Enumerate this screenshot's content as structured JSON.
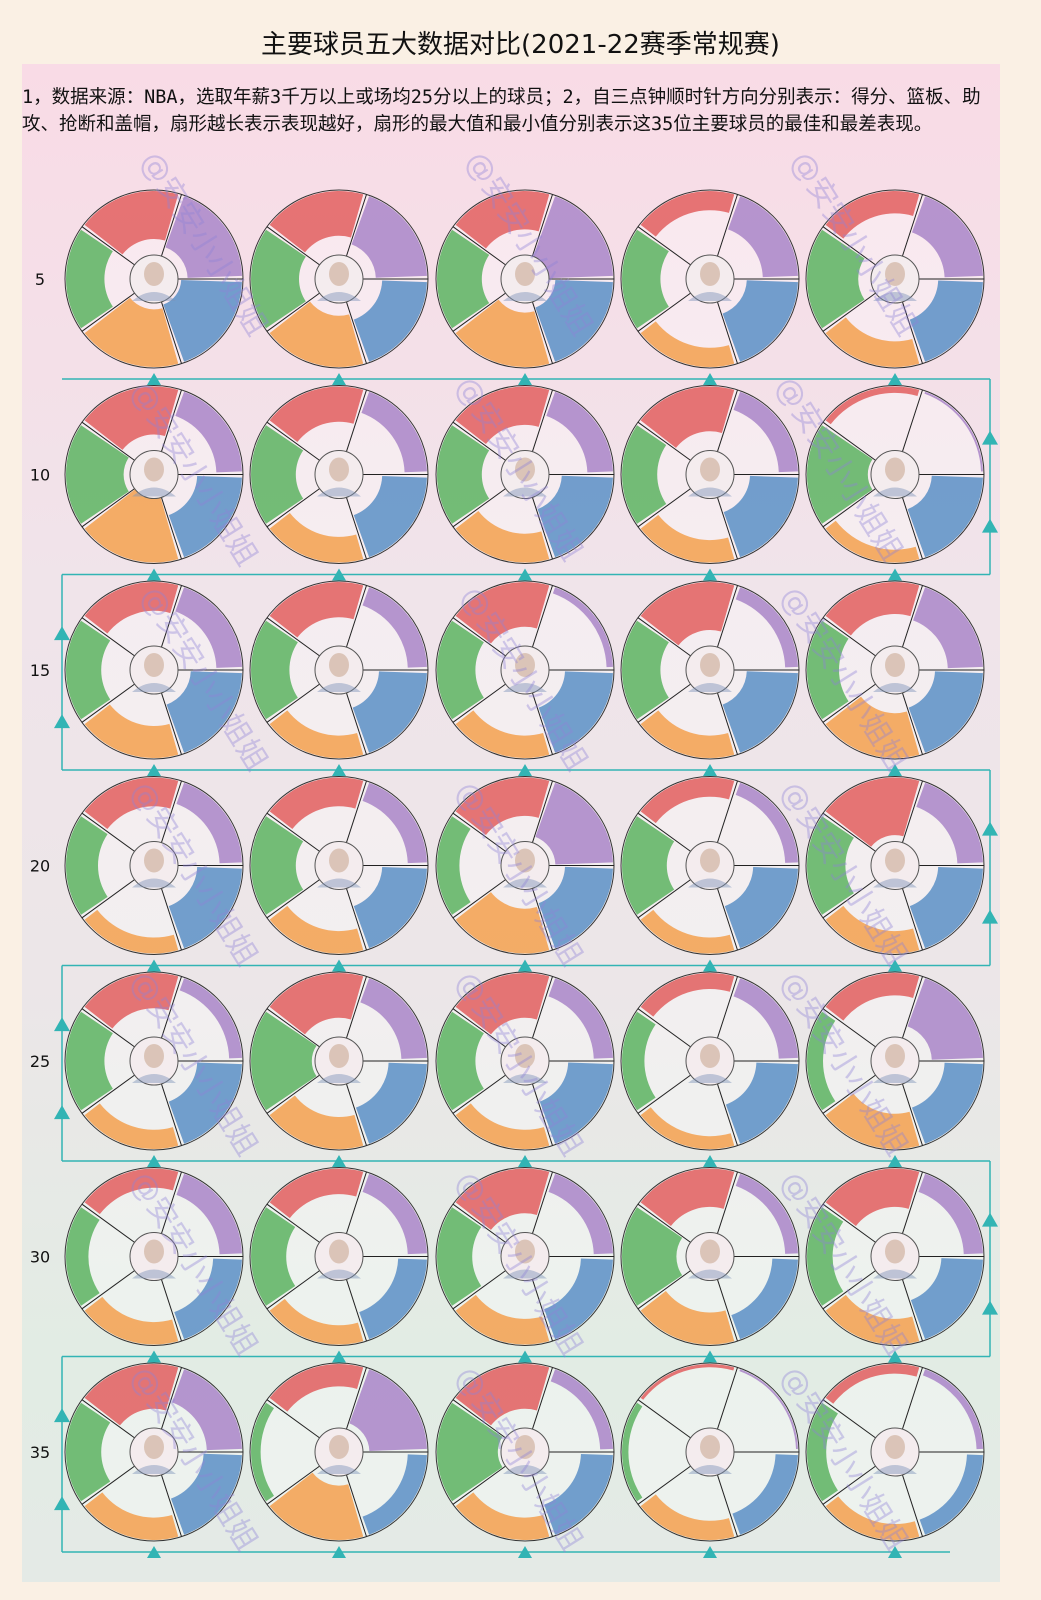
{
  "title": "主要球员五大数据对比(2021-22赛季常规赛)",
  "description": "1，数据来源：NBA，选取年薪3千万以上或场均25分以上的球员；2，自三点钟顺时针方向分别表示：得分、篮板、助攻、抢断和盖帽，扇形越长表示表现越好，扇形的最大值和最小值分别表示这35位主要球员的最佳和最差表现。",
  "watermark": "@安安小小姐姐",
  "colors": {
    "points": "#5b8fc5",
    "rebounds": "#f3a04e",
    "assists": "#5cb360",
    "steals": "#e25e5e",
    "blocks": "#a985c8",
    "connector": "#32b4b4"
  },
  "chart_data": {
    "type": "polar-bar",
    "stat_order_clockwise_from_3_oclock": [
      "得分",
      "篮板",
      "助攻",
      "抢断",
      "盖帽"
    ],
    "row_labels": [
      "5",
      "10",
      "15",
      "20",
      "25",
      "30",
      "35"
    ],
    "scale": "each stat normalized 0 (worst of 35 players) to 1 (best of 35 players)",
    "players": [
      {
        "rank": 1,
        "values": [
          0.95,
          0.9,
          0.6,
          0.75,
          0.85
        ]
      },
      {
        "rank": 2,
        "values": [
          0.7,
          0.8,
          0.75,
          0.7,
          0.8
        ]
      },
      {
        "rank": 3,
        "values": [
          0.9,
          0.85,
          0.7,
          0.6,
          1.0
        ]
      },
      {
        "rank": 4,
        "values": [
          0.8,
          0.3,
          0.6,
          0.3,
          0.55
        ]
      },
      {
        "rank": 5,
        "values": [
          0.7,
          0.4,
          0.8,
          0.35,
          0.6
        ]
      },
      {
        "rank": 6,
        "values": [
          0.7,
          1.0,
          0.9,
          0.75,
          0.4
        ]
      },
      {
        "rank": 7,
        "values": [
          0.7,
          0.4,
          0.7,
          0.55,
          0.35
        ]
      },
      {
        "rank": 8,
        "values": [
          0.8,
          0.45,
          0.7,
          0.6,
          0.4
        ]
      },
      {
        "rank": 9,
        "values": [
          0.75,
          0.35,
          0.55,
          0.7,
          0.3
        ]
      },
      {
        "rank": 10,
        "values": [
          0.8,
          0.2,
          0.95,
          0.1,
          0.0
        ]
      },
      {
        "rank": 11,
        "values": [
          0.8,
          0.5,
          0.55,
          0.45,
          0.4
        ]
      },
      {
        "rank": 12,
        "values": [
          0.75,
          0.35,
          0.6,
          0.55,
          0.3
        ]
      },
      {
        "rank": 13,
        "values": [
          0.75,
          0.35,
          0.6,
          0.7,
          0.1
        ]
      },
      {
        "rank": 14,
        "values": [
          0.8,
          0.35,
          0.6,
          0.75,
          0.2
        ]
      },
      {
        "rank": 15,
        "values": [
          0.75,
          0.7,
          0.5,
          0.5,
          0.55
        ]
      },
      {
        "rank": 16,
        "values": [
          0.7,
          0.25,
          0.5,
          0.45,
          0.35
        ]
      },
      {
        "rank": 17,
        "values": [
          0.7,
          0.35,
          0.7,
          0.45,
          0.3
        ]
      },
      {
        "rank": 18,
        "values": [
          0.75,
          0.7,
          0.35,
          0.6,
          0.9
        ]
      },
      {
        "rank": 19,
        "values": [
          0.7,
          0.25,
          0.7,
          0.3,
          0.2
        ]
      },
      {
        "rank": 20,
        "values": [
          0.7,
          0.35,
          0.6,
          0.9,
          0.4
        ]
      },
      {
        "rank": 21,
        "values": [
          0.7,
          0.3,
          0.6,
          0.55,
          0.2
        ]
      },
      {
        "rank": 22,
        "values": [
          0.6,
          0.5,
          0.95,
          0.7,
          0.4
        ]
      },
      {
        "rank": 23,
        "values": [
          0.7,
          0.3,
          0.6,
          0.7,
          0.3
        ]
      },
      {
        "rank": 24,
        "values": [
          0.65,
          0.2,
          0.35,
          0.25,
          0.3
        ]
      },
      {
        "rank": 25,
        "values": [
          0.6,
          0.55,
          0.25,
          0.35,
          0.8
        ]
      },
      {
        "rank": 26,
        "values": [
          0.45,
          0.35,
          0.35,
          0.3,
          0.35
        ]
      },
      {
        "rank": 27,
        "values": [
          0.45,
          0.3,
          0.55,
          0.4,
          0.3
        ]
      },
      {
        "rank": 28,
        "values": [
          0.5,
          0.4,
          0.55,
          0.7,
          0.3
        ]
      },
      {
        "rank": 29,
        "values": [
          0.4,
          0.5,
          0.85,
          0.6,
          0.2
        ]
      },
      {
        "rank": 30,
        "values": [
          0.65,
          0.4,
          0.4,
          0.6,
          0.3
        ]
      },
      {
        "rank": 31,
        "values": [
          0.6,
          0.35,
          0.55,
          0.7,
          0.55
        ]
      },
      {
        "rank": 32,
        "values": [
          0.3,
          0.85,
          0.15,
          0.35,
          0.9
        ]
      },
      {
        "rank": 33,
        "values": [
          0.5,
          0.35,
          0.95,
          0.7,
          0.2
        ]
      },
      {
        "rank": 34,
        "values": [
          0.35,
          0.3,
          0.1,
          0.05,
          0.0
        ]
      },
      {
        "rank": 35,
        "values": [
          0.25,
          0.25,
          0.3,
          0.15,
          0.1
        ]
      }
    ]
  }
}
